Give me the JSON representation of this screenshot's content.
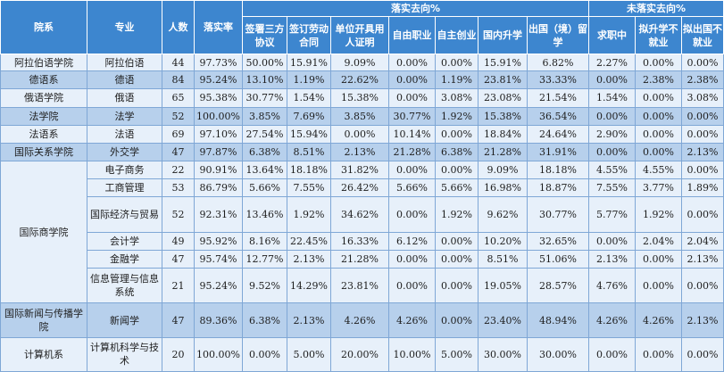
{
  "headers": {
    "college": "院系",
    "major": "专业",
    "count": "人数",
    "rate": "落实率",
    "implemented_group": "落实去向%",
    "unimplemented_group": "未落实去向%",
    "sub": [
      "签署三方协议",
      "签订劳动合同",
      "单位开具用人证明",
      "自由职业",
      "自主创业",
      "国内升学",
      "出国（境）留学",
      "求职中",
      "拟升学不就业",
      "拟出国不就业"
    ]
  },
  "rows": [
    {
      "college": "阿拉伯语学院",
      "major": "阿拉伯语",
      "count": "44",
      "rate": "97.73%",
      "values": [
        "50.00%",
        "15.91%",
        "9.09%",
        "0.00%",
        "0.00%",
        "15.91%",
        "6.82%",
        "2.27%",
        "0.00%",
        "0.00%"
      ]
    },
    {
      "college": "德语系",
      "major": "德语",
      "count": "84",
      "rate": "95.24%",
      "values": [
        "13.10%",
        "1.19%",
        "22.62%",
        "0.00%",
        "1.19%",
        "23.81%",
        "33.33%",
        "0.00%",
        "2.38%",
        "2.38%"
      ]
    },
    {
      "college": "俄语学院",
      "major": "俄语",
      "count": "65",
      "rate": "95.38%",
      "values": [
        "30.77%",
        "1.54%",
        "15.38%",
        "0.00%",
        "3.08%",
        "23.08%",
        "21.54%",
        "1.54%",
        "0.00%",
        "3.08%"
      ]
    },
    {
      "college": "法学院",
      "major": "法学",
      "count": "52",
      "rate": "100.00%",
      "values": [
        "3.85%",
        "7.69%",
        "3.85%",
        "30.77%",
        "1.92%",
        "15.38%",
        "36.54%",
        "0.00%",
        "0.00%",
        "0.00%"
      ]
    },
    {
      "college": "法语系",
      "major": "法语",
      "count": "69",
      "rate": "97.10%",
      "values": [
        "27.54%",
        "15.94%",
        "0.00%",
        "10.14%",
        "0.00%",
        "18.84%",
        "24.64%",
        "2.90%",
        "0.00%",
        "0.00%"
      ]
    },
    {
      "college": "国际关系学院",
      "major": "外交学",
      "count": "47",
      "rate": "97.87%",
      "values": [
        "6.38%",
        "8.51%",
        "2.13%",
        "21.28%",
        "6.38%",
        "21.28%",
        "31.91%",
        "0.00%",
        "0.00%",
        "2.13%"
      ]
    },
    {
      "college": "国际商学院",
      "major": "电子商务",
      "count": "22",
      "rate": "90.91%",
      "values": [
        "13.64%",
        "18.18%",
        "31.82%",
        "0.00%",
        "0.00%",
        "9.09%",
        "18.18%",
        "4.55%",
        "4.55%",
        "0.00%"
      ]
    },
    {
      "college": "",
      "major": "工商管理",
      "count": "53",
      "rate": "86.79%",
      "values": [
        "5.66%",
        "7.55%",
        "26.42%",
        "5.66%",
        "5.66%",
        "16.98%",
        "18.87%",
        "7.55%",
        "3.77%",
        "1.89%"
      ]
    },
    {
      "college": "",
      "major": "国际经济与贸易",
      "count": "52",
      "rate": "92.31%",
      "values": [
        "13.46%",
        "1.92%",
        "34.62%",
        "0.00%",
        "1.92%",
        "9.62%",
        "30.77%",
        "5.77%",
        "1.92%",
        "0.00%"
      ]
    },
    {
      "college": "",
      "major": "会计学",
      "count": "49",
      "rate": "95.92%",
      "values": [
        "8.16%",
        "22.45%",
        "16.33%",
        "6.12%",
        "0.00%",
        "10.20%",
        "32.65%",
        "0.00%",
        "2.04%",
        "2.04%"
      ]
    },
    {
      "college": "",
      "major": "金融学",
      "count": "47",
      "rate": "95.74%",
      "values": [
        "12.77%",
        "2.13%",
        "21.28%",
        "0.00%",
        "0.00%",
        "8.51%",
        "51.06%",
        "2.13%",
        "0.00%",
        "2.13%"
      ]
    },
    {
      "college": "",
      "major": "信息管理与信息系统",
      "count": "21",
      "rate": "95.24%",
      "values": [
        "9.52%",
        "14.29%",
        "23.81%",
        "0.00%",
        "0.00%",
        "19.05%",
        "28.57%",
        "4.76%",
        "0.00%",
        "0.00%"
      ]
    },
    {
      "college": "国际新闻与传播学院",
      "major": "新闻学",
      "count": "47",
      "rate": "89.36%",
      "values": [
        "6.38%",
        "2.13%",
        "4.26%",
        "4.26%",
        "0.00%",
        "23.40%",
        "48.94%",
        "4.26%",
        "4.26%",
        "2.13%"
      ]
    },
    {
      "college": "计算机系",
      "major": "计算机科学与技术",
      "count": "20",
      "rate": "100.00%",
      "values": [
        "0.00%",
        "5.00%",
        "20.00%",
        "10.00%",
        "5.00%",
        "30.00%",
        "30.00%",
        "0.00%",
        "0.00%",
        "0.00%"
      ]
    }
  ]
}
